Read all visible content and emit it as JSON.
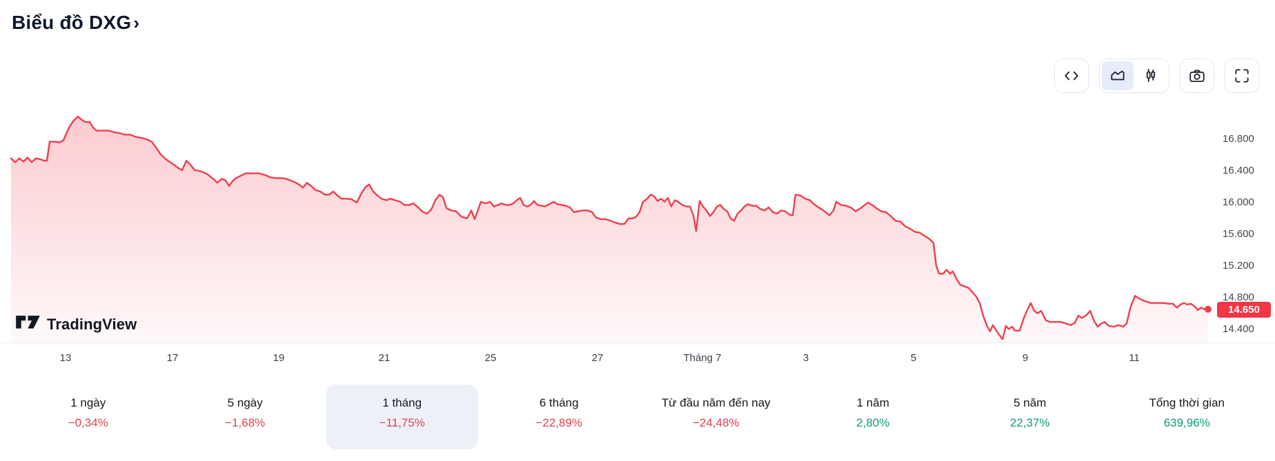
{
  "header": {
    "title": "Biểu đồ DXG",
    "chevron": "›"
  },
  "toolbar": {
    "buttons": [
      "code-view",
      "chart-type-toggle",
      "snapshot",
      "fullscreen"
    ],
    "chart_type_selected": "area"
  },
  "watermark": {
    "brand": "TradingView"
  },
  "colors": {
    "negative": "#e0404e",
    "positive": "#0e9b7d",
    "accent_red": "#f23645",
    "title": "#0e1a2c"
  },
  "chart_data": {
    "type": "area",
    "symbol": "DXG",
    "title": "Biểu đồ DXG",
    "grid": false,
    "legend_position": "none",
    "line_color": "#ef3e4d",
    "fill_top": "rgba(242,54,69,0.26)",
    "fill_bottom": "rgba(242,54,69,0.03)",
    "xlim": [
      0,
      1760
    ],
    "ylim": [
      14.23,
      17.43
    ],
    "y_axis_side": "right",
    "y_ticks": [
      {
        "value": 16.8,
        "label": "16.800"
      },
      {
        "value": 16.4,
        "label": "16.400"
      },
      {
        "value": 16.0,
        "label": "16.000"
      },
      {
        "value": 15.6,
        "label": "15.600"
      },
      {
        "value": 15.2,
        "label": "15.200"
      },
      {
        "value": 14.8,
        "label": "14.800"
      },
      {
        "value": 14.4,
        "label": "14.400"
      }
    ],
    "x_ticks": [
      {
        "x": 95,
        "label": "13"
      },
      {
        "x": 250,
        "label": "17"
      },
      {
        "x": 404,
        "label": "19"
      },
      {
        "x": 557,
        "label": "21"
      },
      {
        "x": 711,
        "label": "25"
      },
      {
        "x": 866,
        "label": "27"
      },
      {
        "x": 1018,
        "label": "Tháng 7"
      },
      {
        "x": 1168,
        "label": "3"
      },
      {
        "x": 1324,
        "label": "5"
      },
      {
        "x": 1486,
        "label": "9"
      },
      {
        "x": 1644,
        "label": "11"
      }
    ],
    "last_price": {
      "value": 14.65,
      "label": "14.650"
    },
    "points": [
      [
        16,
        16.56
      ],
      [
        22,
        16.51
      ],
      [
        28,
        16.56
      ],
      [
        34,
        16.52
      ],
      [
        40,
        16.57
      ],
      [
        46,
        16.51
      ],
      [
        52,
        16.56
      ],
      [
        58,
        16.55
      ],
      [
        64,
        16.53
      ],
      [
        68,
        16.53
      ],
      [
        72,
        16.77
      ],
      [
        80,
        16.77
      ],
      [
        86,
        16.76
      ],
      [
        92,
        16.79
      ],
      [
        100,
        16.95
      ],
      [
        106,
        17.03
      ],
      [
        113,
        17.09
      ],
      [
        118,
        17.05
      ],
      [
        124,
        17.02
      ],
      [
        130,
        17.02
      ],
      [
        135,
        16.95
      ],
      [
        140,
        16.91
      ],
      [
        150,
        16.91
      ],
      [
        158,
        16.91
      ],
      [
        165,
        16.89
      ],
      [
        173,
        16.88
      ],
      [
        181,
        16.86
      ],
      [
        189,
        16.86
      ],
      [
        197,
        16.83
      ],
      [
        205,
        16.82
      ],
      [
        213,
        16.8
      ],
      [
        220,
        16.77
      ],
      [
        226,
        16.7
      ],
      [
        232,
        16.62
      ],
      [
        239,
        16.56
      ],
      [
        245,
        16.52
      ],
      [
        252,
        16.48
      ],
      [
        258,
        16.44
      ],
      [
        264,
        16.41
      ],
      [
        270,
        16.53
      ],
      [
        276,
        16.48
      ],
      [
        282,
        16.41
      ],
      [
        289,
        16.4
      ],
      [
        296,
        16.38
      ],
      [
        302,
        16.35
      ],
      [
        309,
        16.3
      ],
      [
        315,
        16.25
      ],
      [
        321,
        16.3
      ],
      [
        327,
        16.28
      ],
      [
        332,
        16.21
      ],
      [
        337,
        16.27
      ],
      [
        342,
        16.31
      ],
      [
        349,
        16.34
      ],
      [
        356,
        16.37
      ],
      [
        366,
        16.37
      ],
      [
        376,
        16.37
      ],
      [
        384,
        16.35
      ],
      [
        392,
        16.32
      ],
      [
        400,
        16.31
      ],
      [
        408,
        16.31
      ],
      [
        415,
        16.3
      ],
      [
        421,
        16.28
      ],
      [
        427,
        16.26
      ],
      [
        433,
        16.23
      ],
      [
        439,
        16.19
      ],
      [
        445,
        16.25
      ],
      [
        451,
        16.21
      ],
      [
        457,
        16.16
      ],
      [
        464,
        16.14
      ],
      [
        471,
        16.1
      ],
      [
        477,
        16.1
      ],
      [
        483,
        16.14
      ],
      [
        489,
        16.09
      ],
      [
        495,
        16.05
      ],
      [
        503,
        16.05
      ],
      [
        510,
        16.04
      ],
      [
        517,
        16.0
      ],
      [
        524,
        16.12
      ],
      [
        530,
        16.2
      ],
      [
        535,
        16.23
      ],
      [
        541,
        16.14
      ],
      [
        547,
        16.09
      ],
      [
        553,
        16.05
      ],
      [
        560,
        16.03
      ],
      [
        566,
        16.05
      ],
      [
        573,
        16.03
      ],
      [
        580,
        16.01
      ],
      [
        586,
        15.97
      ],
      [
        593,
        15.97
      ],
      [
        599,
        15.99
      ],
      [
        606,
        15.94
      ],
      [
        613,
        15.88
      ],
      [
        619,
        15.86
      ],
      [
        625,
        15.91
      ],
      [
        631,
        16.03
      ],
      [
        637,
        16.1
      ],
      [
        642,
        16.07
      ],
      [
        647,
        15.93
      ],
      [
        654,
        15.9
      ],
      [
        661,
        15.89
      ],
      [
        669,
        15.82
      ],
      [
        677,
        15.8
      ],
      [
        683,
        15.9
      ],
      [
        688,
        15.79
      ],
      [
        697,
        16.01
      ],
      [
        704,
        15.99
      ],
      [
        710,
        16.01
      ],
      [
        716,
        15.95
      ],
      [
        722,
        15.97
      ],
      [
        727,
        15.99
      ],
      [
        733,
        15.97
      ],
      [
        739,
        15.97
      ],
      [
        744,
        15.99
      ],
      [
        749,
        16.03
      ],
      [
        754,
        16.06
      ],
      [
        759,
        15.97
      ],
      [
        764,
        15.95
      ],
      [
        769,
        15.97
      ],
      [
        774,
        16.02
      ],
      [
        779,
        15.97
      ],
      [
        785,
        15.96
      ],
      [
        790,
        15.95
      ],
      [
        796,
        15.98
      ],
      [
        802,
        16.01
      ],
      [
        808,
        15.98
      ],
      [
        814,
        15.97
      ],
      [
        820,
        15.96
      ],
      [
        826,
        15.94
      ],
      [
        832,
        15.88
      ],
      [
        838,
        15.89
      ],
      [
        845,
        15.9
      ],
      [
        852,
        15.9
      ],
      [
        858,
        15.88
      ],
      [
        864,
        15.81
      ],
      [
        871,
        15.79
      ],
      [
        878,
        15.79
      ],
      [
        885,
        15.77
      ],
      [
        891,
        15.75
      ],
      [
        898,
        15.73
      ],
      [
        905,
        15.73
      ],
      [
        911,
        15.8
      ],
      [
        917,
        15.8
      ],
      [
        922,
        15.82
      ],
      [
        927,
        15.88
      ],
      [
        932,
        16.01
      ],
      [
        938,
        16.05
      ],
      [
        943,
        16.1
      ],
      [
        948,
        16.08
      ],
      [
        953,
        16.02
      ],
      [
        958,
        16.05
      ],
      [
        963,
        16.01
      ],
      [
        968,
        16.06
      ],
      [
        973,
        15.95
      ],
      [
        978,
        16.03
      ],
      [
        983,
        16.01
      ],
      [
        989,
        15.97
      ],
      [
        995,
        15.95
      ],
      [
        1000,
        15.95
      ],
      [
        1005,
        15.84
      ],
      [
        1009,
        15.64
      ],
      [
        1014,
        16.02
      ],
      [
        1019,
        15.95
      ],
      [
        1024,
        15.9
      ],
      [
        1029,
        15.83
      ],
      [
        1034,
        15.88
      ],
      [
        1039,
        15.95
      ],
      [
        1044,
        15.97
      ],
      [
        1049,
        15.92
      ],
      [
        1054,
        15.89
      ],
      [
        1059,
        15.8
      ],
      [
        1064,
        15.77
      ],
      [
        1069,
        15.86
      ],
      [
        1074,
        15.9
      ],
      [
        1079,
        15.95
      ],
      [
        1084,
        15.98
      ],
      [
        1090,
        15.96
      ],
      [
        1096,
        15.96
      ],
      [
        1102,
        15.92
      ],
      [
        1108,
        15.9
      ],
      [
        1114,
        15.94
      ],
      [
        1120,
        15.88
      ],
      [
        1126,
        15.86
      ],
      [
        1132,
        15.9
      ],
      [
        1138,
        15.89
      ],
      [
        1144,
        15.85
      ],
      [
        1149,
        15.84
      ],
      [
        1153,
        16.1
      ],
      [
        1160,
        16.09
      ],
      [
        1167,
        16.05
      ],
      [
        1174,
        16.03
      ],
      [
        1181,
        15.97
      ],
      [
        1188,
        15.93
      ],
      [
        1195,
        15.89
      ],
      [
        1202,
        15.84
      ],
      [
        1208,
        15.9
      ],
      [
        1212,
        16.01
      ],
      [
        1219,
        15.97
      ],
      [
        1226,
        15.96
      ],
      [
        1233,
        15.94
      ],
      [
        1240,
        15.89
      ],
      [
        1246,
        15.92
      ],
      [
        1252,
        15.96
      ],
      [
        1258,
        16.0
      ],
      [
        1264,
        15.97
      ],
      [
        1270,
        15.93
      ],
      [
        1277,
        15.89
      ],
      [
        1284,
        15.88
      ],
      [
        1291,
        15.83
      ],
      [
        1298,
        15.77
      ],
      [
        1305,
        15.76
      ],
      [
        1312,
        15.7
      ],
      [
        1319,
        15.67
      ],
      [
        1326,
        15.63
      ],
      [
        1333,
        15.62
      ],
      [
        1340,
        15.58
      ],
      [
        1347,
        15.54
      ],
      [
        1353,
        15.49
      ],
      [
        1357,
        15.2
      ],
      [
        1361,
        15.1
      ],
      [
        1367,
        15.1
      ],
      [
        1372,
        15.15
      ],
      [
        1377,
        15.1
      ],
      [
        1381,
        15.13
      ],
      [
        1386,
        15.04
      ],
      [
        1392,
        14.96
      ],
      [
        1398,
        14.94
      ],
      [
        1404,
        14.92
      ],
      [
        1410,
        14.86
      ],
      [
        1415,
        14.81
      ],
      [
        1420,
        14.73
      ],
      [
        1425,
        14.57
      ],
      [
        1430,
        14.45
      ],
      [
        1435,
        14.37
      ],
      [
        1439,
        14.45
      ],
      [
        1444,
        14.38
      ],
      [
        1449,
        14.32
      ],
      [
        1453,
        14.27
      ],
      [
        1458,
        14.44
      ],
      [
        1462,
        14.4
      ],
      [
        1467,
        14.43
      ],
      [
        1471,
        14.38
      ],
      [
        1478,
        14.38
      ],
      [
        1484,
        14.54
      ],
      [
        1490,
        14.66
      ],
      [
        1494,
        14.73
      ],
      [
        1499,
        14.63
      ],
      [
        1504,
        14.6
      ],
      [
        1509,
        14.63
      ],
      [
        1516,
        14.51
      ],
      [
        1522,
        14.49
      ],
      [
        1530,
        14.49
      ],
      [
        1538,
        14.49
      ],
      [
        1545,
        14.47
      ],
      [
        1552,
        14.45
      ],
      [
        1558,
        14.48
      ],
      [
        1563,
        14.57
      ],
      [
        1568,
        14.54
      ],
      [
        1574,
        14.57
      ],
      [
        1580,
        14.63
      ],
      [
        1586,
        14.5
      ],
      [
        1591,
        14.43
      ],
      [
        1596,
        14.47
      ],
      [
        1601,
        14.49
      ],
      [
        1607,
        14.44
      ],
      [
        1614,
        14.43
      ],
      [
        1621,
        14.45
      ],
      [
        1628,
        14.43
      ],
      [
        1633,
        14.47
      ],
      [
        1638,
        14.66
      ],
      [
        1645,
        14.82
      ],
      [
        1652,
        14.78
      ],
      [
        1660,
        14.75
      ],
      [
        1668,
        14.73
      ],
      [
        1677,
        14.73
      ],
      [
        1686,
        14.73
      ],
      [
        1694,
        14.72
      ],
      [
        1700,
        14.72
      ],
      [
        1706,
        14.67
      ],
      [
        1711,
        14.71
      ],
      [
        1716,
        14.73
      ],
      [
        1721,
        14.71
      ],
      [
        1726,
        14.72
      ],
      [
        1731,
        14.69
      ],
      [
        1736,
        14.64
      ],
      [
        1741,
        14.67
      ],
      [
        1746,
        14.65
      ],
      [
        1751,
        14.65
      ]
    ]
  },
  "ranges": {
    "tabs": [
      {
        "label": "1 ngày",
        "change": "−0,34%",
        "direction": "down",
        "selected": false
      },
      {
        "label": "5 ngày",
        "change": "−1,68%",
        "direction": "down",
        "selected": false
      },
      {
        "label": "1 tháng",
        "change": "−11,75%",
        "direction": "down",
        "selected": true
      },
      {
        "label": "6 tháng",
        "change": "−22,89%",
        "direction": "down",
        "selected": false
      },
      {
        "label": "Từ đầu năm đến nay",
        "change": "−24,48%",
        "direction": "down",
        "selected": false
      },
      {
        "label": "1 năm",
        "change": "2,80%",
        "direction": "up",
        "selected": false
      },
      {
        "label": "5 năm",
        "change": "22,37%",
        "direction": "up",
        "selected": false
      },
      {
        "label": "Tổng thời gian",
        "change": "639,96%",
        "direction": "up",
        "selected": false
      }
    ]
  }
}
